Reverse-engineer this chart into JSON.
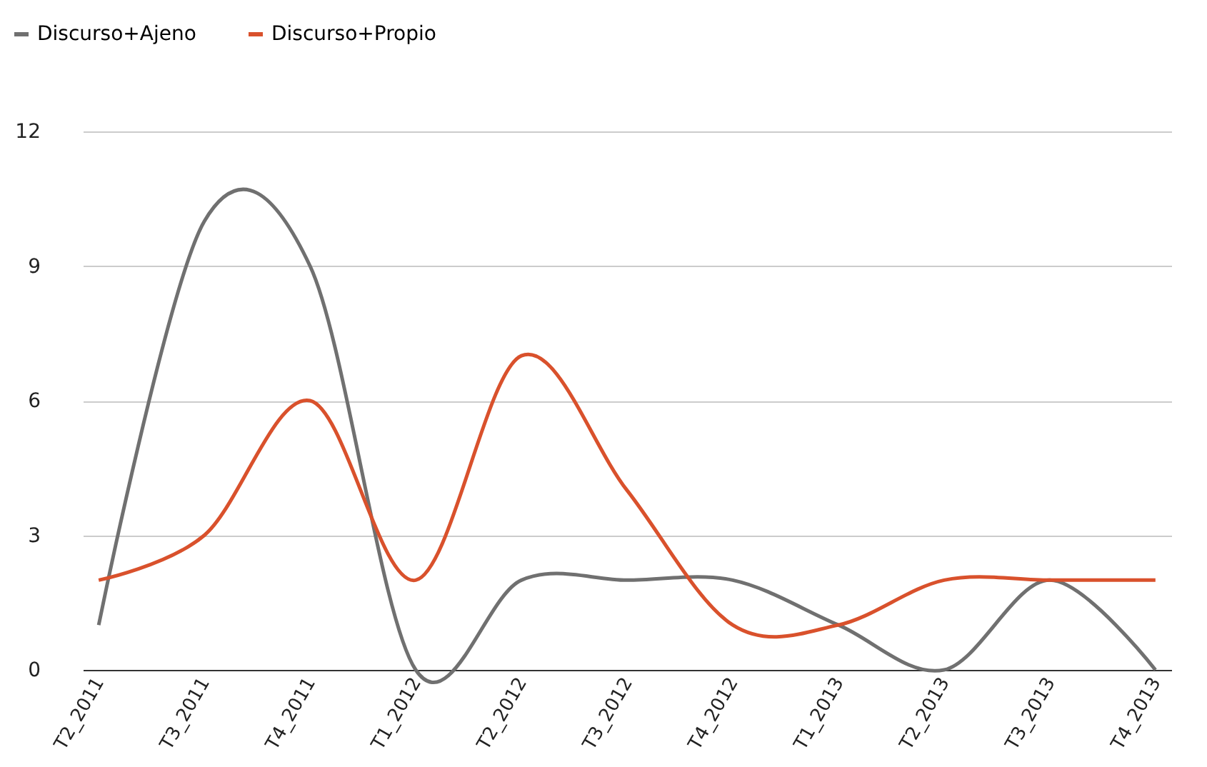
{
  "chart_data": {
    "type": "line",
    "categories": [
      "T2_2011",
      "T3_2011",
      "T4_2011",
      "T1_2012",
      "T2_2012",
      "T3_2012",
      "T4_2012",
      "T1_2013",
      "T2_2013",
      "T3_2013",
      "T4_2013"
    ],
    "series": [
      {
        "name": "Discurso+Ajeno",
        "color": "#707070",
        "values": [
          1,
          10,
          9,
          0,
          2,
          2,
          2,
          1,
          0,
          2,
          0
        ]
      },
      {
        "name": "Discurso+Propio",
        "color": "#d9512c",
        "values": [
          2,
          3,
          6,
          2,
          7,
          4,
          1,
          1,
          2,
          2,
          2
        ]
      }
    ],
    "ylim": [
      0,
      12
    ],
    "yticks": [
      0,
      3,
      6,
      9,
      12
    ],
    "grid": "y",
    "legend": "top left",
    "marker": "none",
    "line_style": "solid"
  }
}
